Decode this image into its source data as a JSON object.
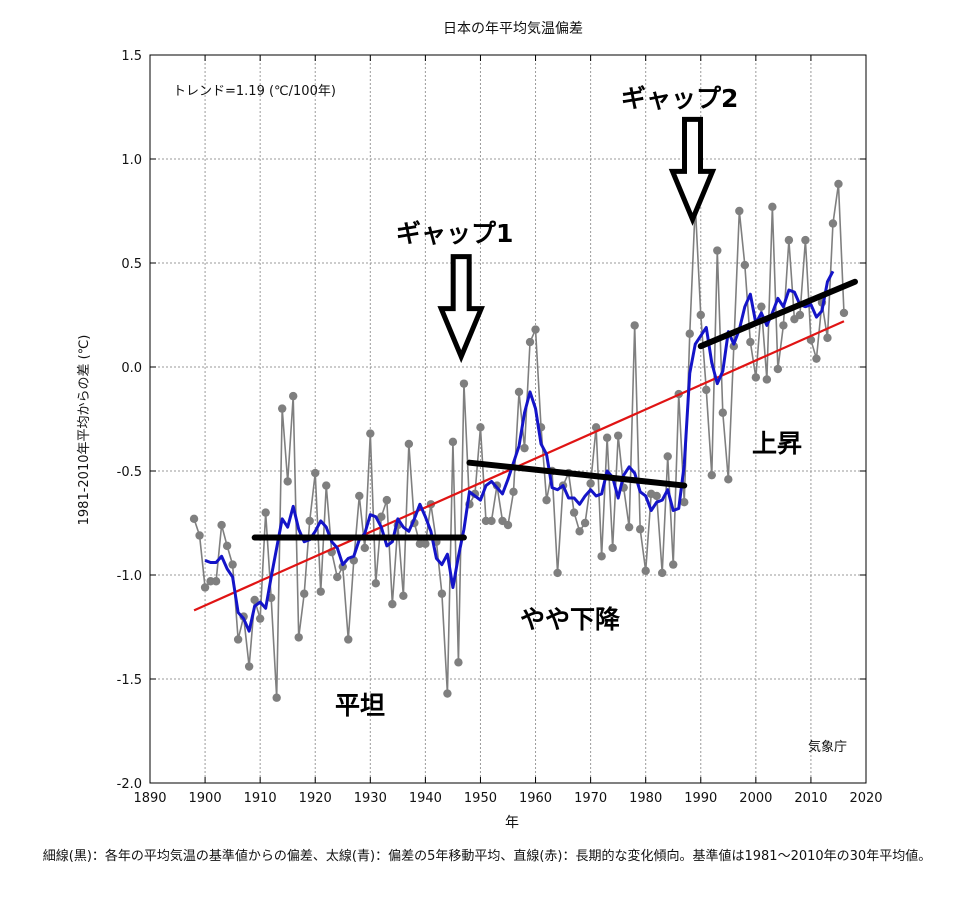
{
  "chart_data": {
    "type": "line",
    "title": "日本の年平均気温偏差",
    "xlabel": "年",
    "ylabel": "1981-2010年平均からの差 (℃)",
    "xlim": [
      1890,
      2020
    ],
    "ylim": [
      -2.0,
      1.5
    ],
    "xticks": [
      1890,
      1900,
      1910,
      1920,
      1930,
      1940,
      1950,
      1960,
      1970,
      1980,
      1990,
      2000,
      2010,
      2020
    ],
    "yticks": [
      -2.0,
      -1.5,
      -1.0,
      -0.5,
      0.0,
      0.5,
      1.0,
      1.5
    ],
    "xtick_labels": [
      "1890",
      "1900",
      "1910",
      "1920",
      "1930",
      "1940",
      "1950",
      "1960",
      "1970",
      "1980",
      "1990",
      "2000",
      "2010",
      "2020"
    ],
    "ytick_labels": [
      "-2.0",
      "-1.5",
      "-1.0",
      "-0.5",
      "0.0",
      "0.5",
      "1.0",
      "1.5"
    ],
    "grid": true,
    "years": [
      1898,
      1899,
      1900,
      1901,
      1902,
      1903,
      1904,
      1905,
      1906,
      1907,
      1908,
      1909,
      1910,
      1911,
      1912,
      1913,
      1914,
      1915,
      1916,
      1917,
      1918,
      1919,
      1920,
      1921,
      1922,
      1923,
      1924,
      1925,
      1926,
      1927,
      1928,
      1929,
      1930,
      1931,
      1932,
      1933,
      1934,
      1935,
      1936,
      1937,
      1938,
      1939,
      1940,
      1941,
      1942,
      1943,
      1944,
      1945,
      1946,
      1947,
      1948,
      1949,
      1950,
      1951,
      1952,
      1953,
      1954,
      1955,
      1956,
      1957,
      1958,
      1959,
      1960,
      1961,
      1962,
      1963,
      1964,
      1965,
      1966,
      1967,
      1968,
      1969,
      1970,
      1971,
      1972,
      1973,
      1974,
      1975,
      1976,
      1977,
      1978,
      1979,
      1980,
      1981,
      1982,
      1983,
      1984,
      1985,
      1986,
      1987,
      1988,
      1989,
      1990,
      1991,
      1992,
      1993,
      1994,
      1995,
      1996,
      1997,
      1998,
      1999,
      2000,
      2001,
      2002,
      2003,
      2004,
      2005,
      2006,
      2007,
      2008,
      2009,
      2010,
      2011,
      2012,
      2013,
      2014,
      2015,
      2016
    ],
    "series": [
      {
        "name": "年平均気温偏差",
        "color": "#7f7f7f",
        "marker": "circle",
        "values": [
          -0.73,
          -0.81,
          -1.06,
          -1.03,
          -1.03,
          -0.76,
          -0.86,
          -0.95,
          -1.31,
          -1.2,
          -1.44,
          -1.12,
          -1.21,
          -0.7,
          -1.11,
          -1.59,
          -0.2,
          -0.55,
          -0.14,
          -1.3,
          -1.09,
          -0.74,
          -0.51,
          -1.08,
          -0.57,
          -0.89,
          -1.01,
          -0.96,
          -1.31,
          -0.93,
          -0.62,
          -0.87,
          -0.32,
          -1.04,
          -0.72,
          -0.64,
          -1.14,
          -0.76,
          -1.1,
          -0.37,
          -0.75,
          -0.85,
          -0.85,
          -0.66,
          -0.84,
          -1.09,
          -1.57,
          -0.36,
          -1.42,
          -0.08,
          -0.66,
          -0.61,
          -0.29,
          -0.74,
          -0.74,
          -0.57,
          -0.74,
          -0.76,
          -0.6,
          -0.12,
          -0.39,
          0.12,
          0.18,
          -0.29,
          -0.64,
          -0.5,
          -0.99,
          -0.57,
          -0.51,
          -0.7,
          -0.79,
          -0.75,
          -0.56,
          -0.29,
          -0.91,
          -0.34,
          -0.87,
          -0.33,
          -0.58,
          -0.77,
          0.2,
          -0.78,
          -0.98,
          -0.61,
          -0.62,
          -0.99,
          -0.43,
          -0.95,
          -0.13,
          -0.65,
          0.16,
          0.78,
          0.25,
          -0.11,
          -0.52,
          0.56,
          -0.22,
          -0.54,
          0.1,
          0.75,
          0.49,
          0.12,
          -0.05,
          0.29,
          -0.06,
          0.77,
          -0.01,
          0.2,
          0.61,
          0.23,
          0.25,
          0.61,
          0.13,
          0.04,
          0.31,
          0.14,
          0.69,
          0.88,
          0.26
        ]
      },
      {
        "name": "偏差の5年移動平均",
        "color": "#1414c8",
        "values": [
          null,
          null,
          -0.93,
          -0.94,
          -0.94,
          -0.91,
          -0.97,
          -1.01,
          -1.18,
          -1.21,
          -1.27,
          -1.15,
          -1.13,
          -1.16,
          -1.01,
          -0.87,
          -0.73,
          -0.77,
          -0.67,
          -0.78,
          -0.84,
          -0.83,
          -0.79,
          -0.74,
          -0.77,
          -0.84,
          -0.87,
          -0.95,
          -0.92,
          -0.91,
          -0.83,
          -0.8,
          -0.71,
          -0.72,
          -0.77,
          -0.86,
          -0.84,
          -0.73,
          -0.77,
          -0.79,
          -0.73,
          -0.66,
          -0.72,
          -0.79,
          -0.92,
          -0.95,
          -0.9,
          -1.06,
          -0.91,
          -0.78,
          -0.6,
          -0.62,
          -0.64,
          -0.57,
          -0.55,
          -0.58,
          -0.61,
          -0.54,
          -0.46,
          -0.38,
          -0.22,
          -0.12,
          -0.2,
          -0.37,
          -0.42,
          -0.58,
          -0.59,
          -0.57,
          -0.63,
          -0.63,
          -0.66,
          -0.62,
          -0.59,
          -0.62,
          -0.61,
          -0.5,
          -0.53,
          -0.63,
          -0.52,
          -0.48,
          -0.51,
          -0.6,
          -0.62,
          -0.69,
          -0.65,
          -0.64,
          -0.59,
          -0.69,
          -0.68,
          -0.47,
          -0.03,
          0.11,
          0.15,
          0.19,
          0.02,
          -0.08,
          -0.02,
          0.17,
          0.11,
          0.18,
          0.29,
          0.35,
          0.21,
          0.26,
          0.2,
          0.26,
          0.33,
          0.29,
          0.37,
          0.36,
          0.3,
          0.29,
          0.3,
          0.24,
          0.27,
          0.41,
          0.46,
          null,
          null
        ]
      }
    ],
    "trend_line": {
      "name": "長期的な変化傾向",
      "color": "#e01414",
      "start": [
        1898,
        -1.17
      ],
      "end": [
        2016,
        0.22
      ]
    },
    "annotation_lines": [
      {
        "color": "#000000",
        "start": [
          1909,
          -0.82
        ],
        "end": [
          1947,
          -0.82
        ]
      },
      {
        "color": "#000000",
        "start": [
          1948,
          -0.46
        ],
        "end": [
          1987,
          -0.57
        ]
      },
      {
        "color": "#000000",
        "start": [
          1990,
          0.1
        ],
        "end": [
          2018,
          0.41
        ]
      }
    ],
    "annotations": {
      "trend_text": "トレンド=1.19 (℃/100年)",
      "gap1": "ギャップ1",
      "gap2": "ギャップ2",
      "flat": "平坦",
      "slight_decline": "やや下降",
      "rise": "上昇",
      "source": "気象庁"
    },
    "arrows": [
      {
        "name": "gap1",
        "year": 1946.5,
        "tip_value": 0.05
      },
      {
        "name": "gap2",
        "year": 1988.5,
        "tip_value": 0.71
      }
    ],
    "caption": "細線(黒)：各年の平均気温の基準値からの偏差、太線(青)：偏差の5年移動平均、直線(赤)：長期的な変化傾向。基準値は1981～2010年の30年平均値。"
  }
}
